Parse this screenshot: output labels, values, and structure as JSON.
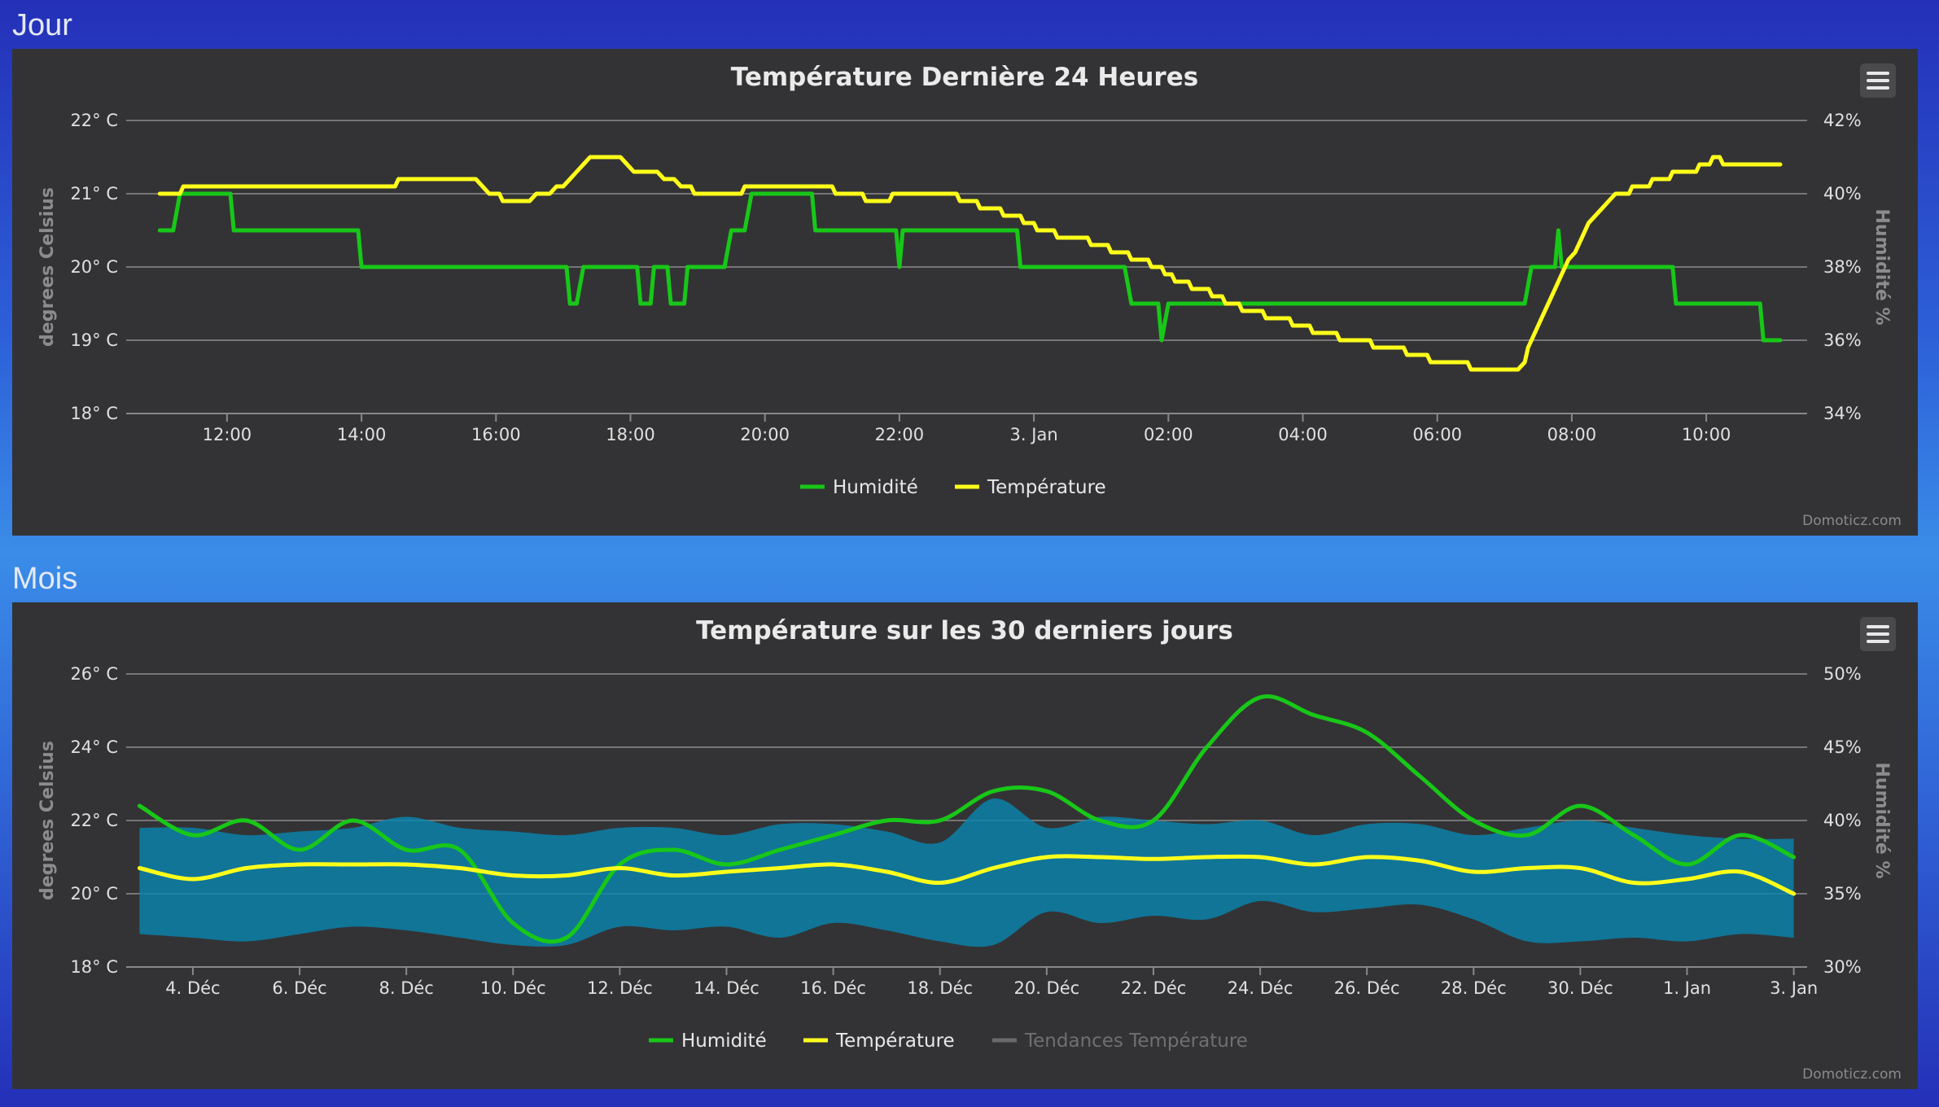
{
  "sections": {
    "day": "Jour",
    "month": "Mois"
  },
  "credit": "Domoticz.com",
  "colors": {
    "humidity": "#18c718",
    "temperature": "#ffff1a",
    "trend_band": "#0a84ad",
    "trend_legend_off": "#6a6a6a"
  },
  "icons": {
    "menu": "hamburger-menu-icon"
  },
  "chart_data": [
    {
      "type": "line",
      "title": "Température Dernière 24 Heures",
      "ylabel": "degrees Celsius",
      "y2label": "Humidité %",
      "ylim": [
        18,
        22
      ],
      "y2lim": [
        34,
        42
      ],
      "yticks": [
        "22° C",
        "21° C",
        "20° C",
        "19° C",
        "18° C"
      ],
      "y2ticks": [
        "42%",
        "40%",
        "38%",
        "36%",
        "34%"
      ],
      "xlim": [
        10.5,
        35.5
      ],
      "xticks": [
        {
          "x": 12,
          "label": "12:00"
        },
        {
          "x": 14,
          "label": "14:00"
        },
        {
          "x": 16,
          "label": "16:00"
        },
        {
          "x": 18,
          "label": "18:00"
        },
        {
          "x": 20,
          "label": "20:00"
        },
        {
          "x": 22,
          "label": "22:00"
        },
        {
          "x": 24,
          "label": "3. Jan"
        },
        {
          "x": 26,
          "label": "02:00"
        },
        {
          "x": 28,
          "label": "04:00"
        },
        {
          "x": 30,
          "label": "06:00"
        },
        {
          "x": 32,
          "label": "08:00"
        },
        {
          "x": 34,
          "label": "10:00"
        }
      ],
      "legend": [
        "Humidité",
        "Température"
      ],
      "series": [
        {
          "name": "Humidité",
          "axis": "right",
          "points": [
            [
              11.0,
              39
            ],
            [
              11.2,
              39
            ],
            [
              11.3,
              40
            ],
            [
              12.05,
              40
            ],
            [
              12.1,
              39
            ],
            [
              13.95,
              39
            ],
            [
              14.0,
              38
            ],
            [
              17.05,
              38
            ],
            [
              17.1,
              37
            ],
            [
              17.2,
              37
            ],
            [
              17.3,
              38
            ],
            [
              18.1,
              38
            ],
            [
              18.15,
              37
            ],
            [
              18.3,
              37
            ],
            [
              18.35,
              38
            ],
            [
              18.55,
              38
            ],
            [
              18.6,
              37
            ],
            [
              18.8,
              37
            ],
            [
              18.85,
              38
            ],
            [
              19.4,
              38
            ],
            [
              19.5,
              39
            ],
            [
              19.7,
              39
            ],
            [
              19.8,
              40
            ],
            [
              20.7,
              40
            ],
            [
              20.75,
              39
            ],
            [
              21.95,
              39
            ],
            [
              22.0,
              38
            ],
            [
              22.05,
              39
            ],
            [
              23.75,
              39
            ],
            [
              23.8,
              38
            ],
            [
              25.35,
              38
            ],
            [
              25.45,
              37
            ],
            [
              25.85,
              37
            ],
            [
              25.9,
              36
            ],
            [
              26.0,
              37
            ],
            [
              28.4,
              37
            ],
            [
              31.3,
              37
            ],
            [
              31.4,
              38
            ],
            [
              31.75,
              38
            ],
            [
              31.8,
              39
            ],
            [
              31.85,
              38
            ],
            [
              33.5,
              38
            ],
            [
              33.55,
              37
            ],
            [
              34.8,
              37
            ],
            [
              34.85,
              36
            ],
            [
              35.1,
              36
            ]
          ]
        },
        {
          "name": "Température",
          "axis": "left",
          "points": [
            [
              11.0,
              21.0
            ],
            [
              11.3,
              21.0
            ],
            [
              11.35,
              21.1
            ],
            [
              14.5,
              21.1
            ],
            [
              14.55,
              21.2
            ],
            [
              15.7,
              21.2
            ],
            [
              15.8,
              21.1
            ],
            [
              15.9,
              21.0
            ],
            [
              16.05,
              21.0
            ],
            [
              16.1,
              20.9
            ],
            [
              16.5,
              20.9
            ],
            [
              16.6,
              21.0
            ],
            [
              16.8,
              21.0
            ],
            [
              16.9,
              21.1
            ],
            [
              17.0,
              21.1
            ],
            [
              17.1,
              21.2
            ],
            [
              17.2,
              21.3
            ],
            [
              17.3,
              21.4
            ],
            [
              17.4,
              21.5
            ],
            [
              17.85,
              21.5
            ],
            [
              17.95,
              21.4
            ],
            [
              18.05,
              21.3
            ],
            [
              18.4,
              21.3
            ],
            [
              18.5,
              21.2
            ],
            [
              18.65,
              21.2
            ],
            [
              18.75,
              21.1
            ],
            [
              18.9,
              21.1
            ],
            [
              18.95,
              21.0
            ],
            [
              19.65,
              21.0
            ],
            [
              19.7,
              21.1
            ],
            [
              21.0,
              21.1
            ],
            [
              21.05,
              21.0
            ],
            [
              21.45,
              21.0
            ],
            [
              21.5,
              20.9
            ],
            [
              21.85,
              20.9
            ],
            [
              21.9,
              21.0
            ],
            [
              22.85,
              21.0
            ],
            [
              22.9,
              20.9
            ],
            [
              23.15,
              20.9
            ],
            [
              23.2,
              20.8
            ],
            [
              23.5,
              20.8
            ],
            [
              23.55,
              20.7
            ],
            [
              23.8,
              20.7
            ],
            [
              23.85,
              20.6
            ],
            [
              24.0,
              20.6
            ],
            [
              24.05,
              20.5
            ],
            [
              24.3,
              20.5
            ],
            [
              24.35,
              20.4
            ],
            [
              24.8,
              20.4
            ],
            [
              24.85,
              20.3
            ],
            [
              25.1,
              20.3
            ],
            [
              25.15,
              20.2
            ],
            [
              25.4,
              20.2
            ],
            [
              25.45,
              20.1
            ],
            [
              25.7,
              20.1
            ],
            [
              25.75,
              20.0
            ],
            [
              25.9,
              20.0
            ],
            [
              25.95,
              19.9
            ],
            [
              26.05,
              19.9
            ],
            [
              26.1,
              19.8
            ],
            [
              26.3,
              19.8
            ],
            [
              26.35,
              19.7
            ],
            [
              26.6,
              19.7
            ],
            [
              26.65,
              19.6
            ],
            [
              26.8,
              19.6
            ],
            [
              26.85,
              19.5
            ],
            [
              27.05,
              19.5
            ],
            [
              27.1,
              19.4
            ],
            [
              27.4,
              19.4
            ],
            [
              27.45,
              19.3
            ],
            [
              27.8,
              19.3
            ],
            [
              27.85,
              19.2
            ],
            [
              28.1,
              19.2
            ],
            [
              28.15,
              19.1
            ],
            [
              28.5,
              19.1
            ],
            [
              28.55,
              19.0
            ],
            [
              29.0,
              19.0
            ],
            [
              29.05,
              18.9
            ],
            [
              29.5,
              18.9
            ],
            [
              29.55,
              18.8
            ],
            [
              29.85,
              18.8
            ],
            [
              29.9,
              18.7
            ],
            [
              30.45,
              18.7
            ],
            [
              30.5,
              18.6
            ],
            [
              31.2,
              18.6
            ],
            [
              31.3,
              18.7
            ],
            [
              31.35,
              18.9
            ],
            [
              31.45,
              19.1
            ],
            [
              31.55,
              19.3
            ],
            [
              31.65,
              19.5
            ],
            [
              31.75,
              19.7
            ],
            [
              31.85,
              19.9
            ],
            [
              31.95,
              20.1
            ],
            [
              32.05,
              20.2
            ],
            [
              32.15,
              20.4
            ],
            [
              32.25,
              20.6
            ],
            [
              32.35,
              20.7
            ],
            [
              32.45,
              20.8
            ],
            [
              32.55,
              20.9
            ],
            [
              32.65,
              21.0
            ],
            [
              32.85,
              21.0
            ],
            [
              32.9,
              21.1
            ],
            [
              33.15,
              21.1
            ],
            [
              33.2,
              21.2
            ],
            [
              33.45,
              21.2
            ],
            [
              33.5,
              21.3
            ],
            [
              33.85,
              21.3
            ],
            [
              33.9,
              21.4
            ],
            [
              34.05,
              21.4
            ],
            [
              34.1,
              21.5
            ],
            [
              34.2,
              21.5
            ],
            [
              34.25,
              21.4
            ],
            [
              35.1,
              21.4
            ]
          ]
        }
      ]
    },
    {
      "type": "line",
      "title": "Température sur les 30 derniers jours",
      "ylabel": "degrees Celsius",
      "y2label": "Humidité %",
      "ylim": [
        18,
        26
      ],
      "y2lim": [
        30,
        50
      ],
      "yticks": [
        "26° C",
        "24° C",
        "22° C",
        "20° C",
        "18° C"
      ],
      "y2ticks": [
        "50%",
        "45%",
        "40%",
        "35%",
        "30%"
      ],
      "xlim": [
        2.75,
        34.25
      ],
      "xticks": [
        {
          "x": 4,
          "label": "4. Déc"
        },
        {
          "x": 6,
          "label": "6. Déc"
        },
        {
          "x": 8,
          "label": "8. Déc"
        },
        {
          "x": 10,
          "label": "10. Déc"
        },
        {
          "x": 12,
          "label": "12. Déc"
        },
        {
          "x": 14,
          "label": "14. Déc"
        },
        {
          "x": 16,
          "label": "16. Déc"
        },
        {
          "x": 18,
          "label": "18. Déc"
        },
        {
          "x": 20,
          "label": "20. Déc"
        },
        {
          "x": 22,
          "label": "22. Déc"
        },
        {
          "x": 24,
          "label": "24. Déc"
        },
        {
          "x": 26,
          "label": "26. Déc"
        },
        {
          "x": 28,
          "label": "28. Déc"
        },
        {
          "x": 30,
          "label": "30. Déc"
        },
        {
          "x": 32,
          "label": "1. Jan"
        },
        {
          "x": 34,
          "label": "3. Jan"
        }
      ],
      "legend": [
        "Humidité",
        "Température",
        "Tendances Température"
      ],
      "series": [
        {
          "name": "Tendances Température",
          "type": "arearange",
          "axis": "left",
          "x": [
            3,
            4,
            5,
            6,
            7,
            8,
            9,
            10,
            11,
            12,
            13,
            14,
            15,
            16,
            17,
            18,
            19,
            20,
            21,
            22,
            23,
            24,
            25,
            26,
            27,
            28,
            29,
            30,
            31,
            32,
            33,
            34
          ],
          "low": [
            18.9,
            18.8,
            18.7,
            18.9,
            19.1,
            19.0,
            18.8,
            18.6,
            18.6,
            19.1,
            19.0,
            19.1,
            18.8,
            19.2,
            19.0,
            18.7,
            18.6,
            19.5,
            19.2,
            19.4,
            19.3,
            19.8,
            19.5,
            19.6,
            19.7,
            19.3,
            18.7,
            18.7,
            18.8,
            18.7,
            18.9,
            18.8
          ],
          "high": [
            21.8,
            21.8,
            21.6,
            21.7,
            21.8,
            22.1,
            21.8,
            21.7,
            21.6,
            21.8,
            21.8,
            21.6,
            21.9,
            21.9,
            21.7,
            21.4,
            22.6,
            21.8,
            22.1,
            22.0,
            21.9,
            22.0,
            21.6,
            21.9,
            21.9,
            21.6,
            21.8,
            22.0,
            21.8,
            21.6,
            21.5,
            21.5
          ]
        },
        {
          "name": "Humidité",
          "axis": "right",
          "x": [
            3,
            4,
            5,
            6,
            7,
            8,
            9,
            10,
            11,
            12,
            13,
            14,
            15,
            16,
            17,
            18,
            19,
            20,
            21,
            22,
            23,
            24,
            25,
            26,
            27,
            28,
            29,
            30,
            31,
            32,
            33,
            34
          ],
          "values": [
            41,
            39,
            40,
            38,
            40,
            38,
            38,
            33,
            32,
            37,
            38,
            37,
            38,
            39,
            40,
            40,
            42,
            42,
            40,
            40,
            45,
            48.4,
            47.2,
            46,
            43,
            40,
            39,
            41,
            39,
            37,
            39,
            37.5
          ]
        },
        {
          "name": "Température",
          "axis": "left",
          "x": [
            3,
            4,
            5,
            6,
            7,
            8,
            9,
            10,
            11,
            12,
            13,
            14,
            15,
            16,
            17,
            18,
            19,
            20,
            21,
            22,
            23,
            24,
            25,
            26,
            27,
            28,
            29,
            30,
            31,
            32,
            33,
            34
          ],
          "values": [
            20.7,
            20.4,
            20.7,
            20.8,
            20.8,
            20.8,
            20.7,
            20.5,
            20.5,
            20.7,
            20.5,
            20.6,
            20.7,
            20.8,
            20.6,
            20.3,
            20.7,
            21.0,
            21.0,
            20.95,
            21.0,
            21.0,
            20.8,
            21.0,
            20.9,
            20.6,
            20.7,
            20.7,
            20.3,
            20.4,
            20.6,
            20.0
          ]
        }
      ]
    }
  ]
}
